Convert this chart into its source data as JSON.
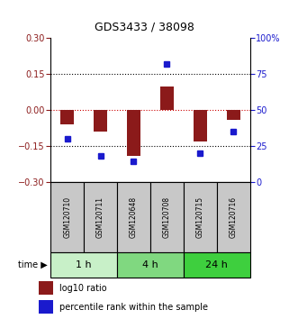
{
  "title": "GDS3433 / 38098",
  "samples": [
    "GSM120710",
    "GSM120711",
    "GSM120648",
    "GSM120708",
    "GSM120715",
    "GSM120716"
  ],
  "log10_ratio": [
    -0.06,
    -0.09,
    -0.19,
    0.1,
    -0.13,
    -0.04
  ],
  "percentile_rank": [
    30,
    18,
    14,
    82,
    20,
    35
  ],
  "groups": [
    {
      "label": "1 h",
      "indices": [
        0,
        1
      ],
      "color": "#c8f0c8"
    },
    {
      "label": "4 h",
      "indices": [
        2,
        3
      ],
      "color": "#80d880"
    },
    {
      "label": "24 h",
      "indices": [
        4,
        5
      ],
      "color": "#3ecf3e"
    }
  ],
  "ylim_left": [
    -0.3,
    0.3
  ],
  "ylim_right": [
    0,
    100
  ],
  "yticks_left": [
    -0.3,
    -0.15,
    0,
    0.15,
    0.3
  ],
  "yticks_right": [
    0,
    25,
    50,
    75,
    100
  ],
  "bar_color": "#8b1a1a",
  "dot_color": "#1a1acd",
  "zero_line_color": "#cc0000",
  "grid_color": "#000000",
  "bg_color": "#ffffff",
  "sample_box_color": "#c8c8c8",
  "time_label": "time",
  "legend_bar": "log10 ratio",
  "legend_dot": "percentile rank within the sample",
  "bar_width": 0.4
}
